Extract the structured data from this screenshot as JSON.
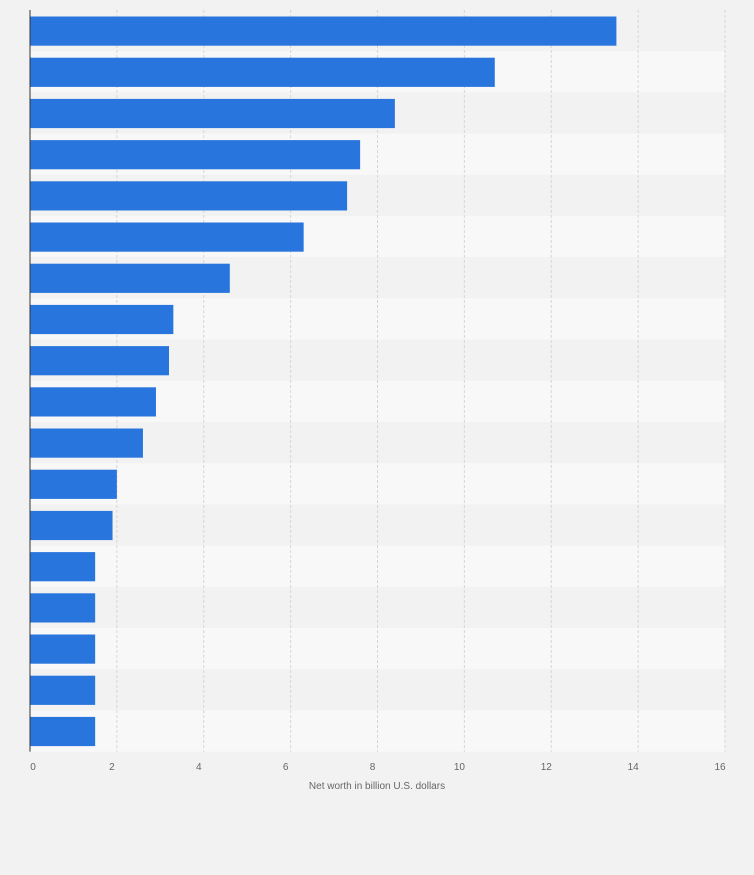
{
  "chart_data": {
    "type": "bar",
    "orientation": "horizontal",
    "categories": [
      "",
      "",
      "",
      "",
      "",
      "",
      "",
      "",
      "",
      "",
      "",
      "",
      "",
      "",
      "",
      "",
      "",
      ""
    ],
    "values": [
      13.5,
      10.7,
      8.4,
      7.6,
      7.3,
      6.3,
      4.6,
      3.3,
      3.2,
      2.9,
      2.6,
      2.0,
      1.9,
      1.5,
      1.5,
      1.5,
      1.5,
      1.5
    ],
    "xlabel": "Net worth in billion U.S. dollars",
    "ylabel": "",
    "xlim": [
      0,
      16
    ],
    "xticks": [
      0,
      2,
      4,
      6,
      8,
      10,
      12,
      14,
      16
    ],
    "grid": true,
    "legend": "none",
    "colors": {
      "bar": "#2876dd",
      "background": "#f2f2f2",
      "band_light": "#f8f8f8",
      "band_dark": "#f2f2f2",
      "grid": "#d6d6d6",
      "axis": "#333333",
      "tick_text": "#666666"
    }
  }
}
